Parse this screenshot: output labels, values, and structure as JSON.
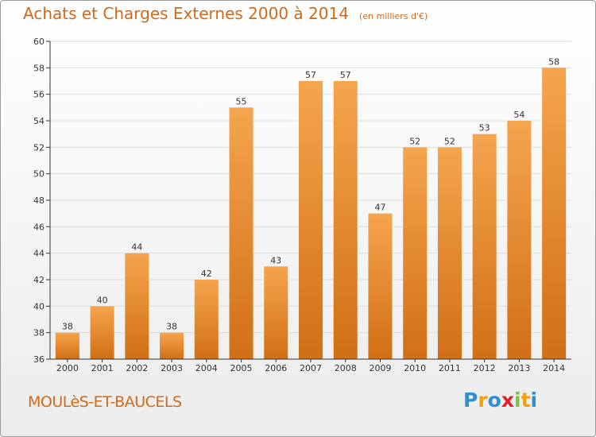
{
  "header": {
    "title": "Achats et Charges Externes 2000 à 2014",
    "unit": "(en milliers d'€)"
  },
  "footer": {
    "place": "MOULèS-ET-BAUCELS",
    "brand": "Proxiti",
    "brand_colors": [
      "#2e8fd6",
      "#f2a20f",
      "#2e8fd6",
      "#e2202d",
      "#7cc242",
      "#f2a20f",
      "#2e8fd6"
    ]
  },
  "colors": {
    "bar_light": "#f5a54e",
    "bar_dark": "#d16f15",
    "axis": "#333333",
    "grid": "#dddddd",
    "text": "#333333"
  },
  "chart_data": {
    "type": "bar",
    "title": "Achats et Charges Externes 2000 à 2014",
    "xlabel": "",
    "ylabel": "",
    "categories": [
      "2000",
      "2001",
      "2002",
      "2003",
      "2004",
      "2005",
      "2006",
      "2007",
      "2008",
      "2009",
      "2010",
      "2011",
      "2012",
      "2013",
      "2014"
    ],
    "values": [
      38,
      40,
      44,
      38,
      42,
      55,
      43,
      57,
      57,
      47,
      52,
      52,
      53,
      54,
      58
    ],
    "ylim": [
      36,
      60
    ],
    "yticks": [
      36,
      38,
      40,
      42,
      44,
      46,
      48,
      50,
      52,
      54,
      56,
      58,
      60
    ],
    "grid": true,
    "data_labels": true
  }
}
